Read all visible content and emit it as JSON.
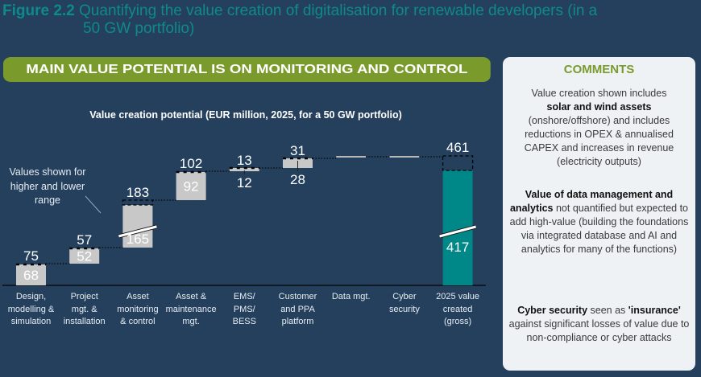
{
  "figure": {
    "number": "Figure 2.2",
    "title_line1": "Quantifying the value creation of digitalisation for renewable developers (in a",
    "title_line2": "50 GW portfolio)"
  },
  "banner": "MAIN VALUE POTENTIAL IS ON MONITORING AND CONTROL",
  "annotation": {
    "line1": "Values shown for",
    "line2": "higher and lower",
    "line3": "range"
  },
  "colors": {
    "background": "#24405d",
    "accent_teal": "#0e8a8a",
    "accent_green": "#7a9b2b",
    "bar_grey": "#c8c8c8",
    "total_bar": "#008888"
  },
  "chart_data": {
    "type": "bar",
    "subtype": "waterfall",
    "title": "Value creation potential (EUR million, 2025, for a 50 GW portfolio)",
    "xlabel": "",
    "ylabel": "",
    "units": "EUR million",
    "categories": [
      [
        "Design,",
        "modelling &",
        "simulation"
      ],
      [
        "Project",
        "mgt. &",
        "installation"
      ],
      [
        "Asset",
        "monitoring",
        "& control"
      ],
      [
        "Asset &",
        "maintenance",
        "mgt."
      ],
      [
        "EMS/",
        "PMS/",
        "BESS"
      ],
      [
        "Customer",
        "and PPA",
        "platform"
      ],
      [
        "Data mgt."
      ],
      [
        "Cyber",
        "security"
      ],
      [
        "2025 value",
        "created",
        "(gross)"
      ]
    ],
    "series": [
      {
        "name": "Lower range",
        "values": [
          68,
          52,
          165,
          92,
          12,
          28,
          null,
          null,
          417
        ]
      },
      {
        "name": "Higher range",
        "values": [
          75,
          57,
          183,
          102,
          13,
          31,
          null,
          null,
          461
        ]
      }
    ],
    "is_total": [
      false,
      false,
      false,
      false,
      false,
      false,
      false,
      false,
      true
    ],
    "not_quantified": [
      false,
      false,
      false,
      false,
      false,
      false,
      true,
      true,
      false
    ],
    "axis_breaks": [
      2,
      8
    ],
    "grid": false,
    "legend": "none"
  },
  "comments": {
    "heading": "COMMENTS",
    "block1": {
      "pre": "Value creation shown includes",
      "bold": "solar and wind assets",
      "post": "(onshore/offshore) and includes reductions in OPEX & annualised CAPEX and increases in revenue (electricity outputs)"
    },
    "block2": {
      "bold": "Value of data management and analytics",
      "post": "not quantified but expected to add high-value (building the foundations via integrated database and AI and analytics for many of the functions)"
    },
    "block3": {
      "bold": "Cyber security",
      "mid": "seen as",
      "bold2": "'insurance'",
      "post": "against significant losses of value due to non-compliance or cyber attacks"
    }
  }
}
